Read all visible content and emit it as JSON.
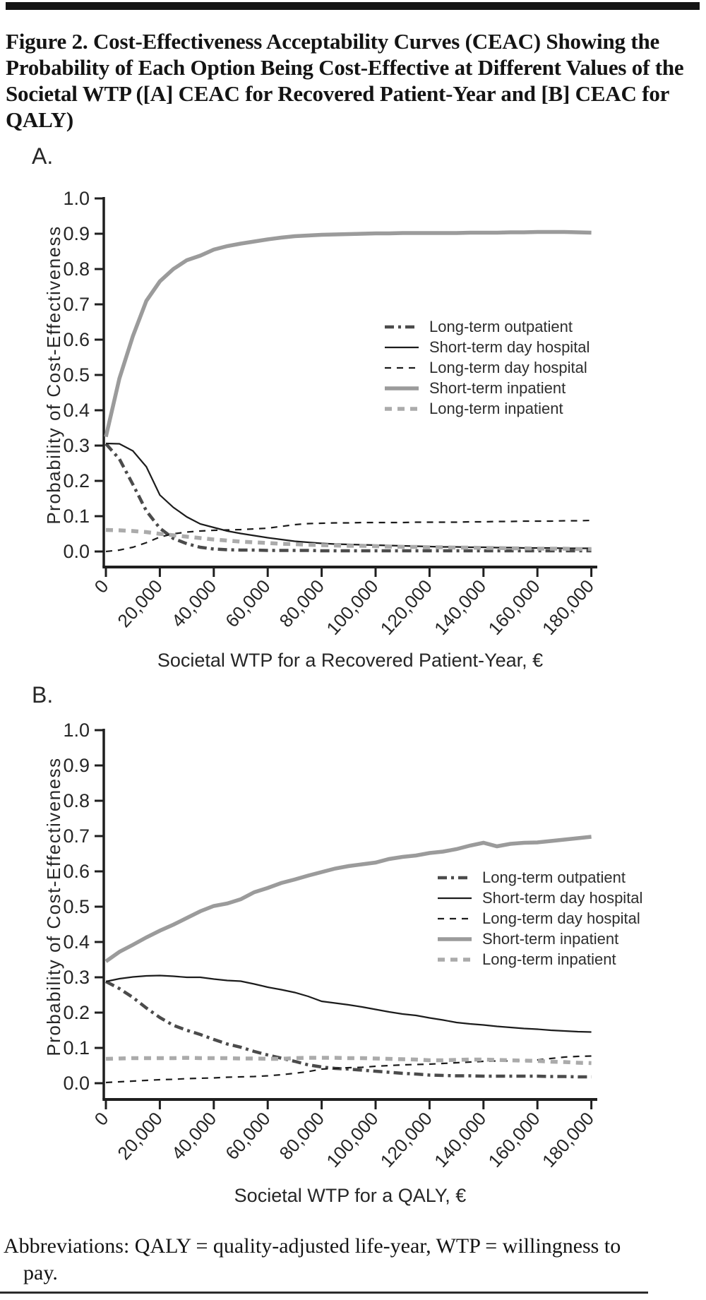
{
  "title": "Figure 2. Cost-Effectiveness Acceptability Curves (CEAC) Showing the Probability of Each Option Being Cost-Effective at Different Values of the Societal WTP ([A] CEAC for Recovered Patient-Year and [B] CEAC for QALY)",
  "footnote": {
    "line1": "Abbreviations: QALY = quality-adjusted life-year, WTP = willingness to",
    "line2": "pay."
  },
  "colors": {
    "black_line": "#1c1c1c",
    "dark_gray_line": "#4b4b4b",
    "mid_gray_line": "#9b9b9b",
    "light_gray_line": "#ababab",
    "axis": "#1f1f1f",
    "text": "#262626"
  },
  "chart_data": [
    {
      "type": "line",
      "panel_label": "A.",
      "xlabel": "Societal WTP for a Recovered Patient-Year, €",
      "ylabel": "Probability of Cost-Effectiveness",
      "xlim": [
        0,
        180000
      ],
      "ylim": [
        0,
        1.0
      ],
      "grid": false,
      "legend_position": "middle-right",
      "x_ticks": [
        0,
        20000,
        40000,
        60000,
        80000,
        100000,
        120000,
        140000,
        160000,
        180000
      ],
      "x_tick_labels": [
        "0",
        "20,000",
        "40,000",
        "60,000",
        "80,000",
        "100,000",
        "120,000",
        "140,000",
        "160,000",
        "180,000"
      ],
      "y_ticks": [
        0,
        0.1,
        0.2,
        0.3,
        0.4,
        0.5,
        0.6,
        0.7,
        0.8,
        0.9,
        1.0
      ],
      "y_tick_labels": [
        "0.0",
        "0.1",
        "0.2",
        "0.3",
        "0.4",
        "0.5",
        "0.6",
        "0.7",
        "0.8",
        "0.9",
        "1.0"
      ],
      "x": [
        0,
        5000,
        10000,
        15000,
        20000,
        25000,
        30000,
        35000,
        40000,
        45000,
        50000,
        55000,
        60000,
        65000,
        70000,
        75000,
        80000,
        85000,
        90000,
        95000,
        100000,
        105000,
        110000,
        115000,
        120000,
        125000,
        130000,
        135000,
        140000,
        145000,
        150000,
        155000,
        160000,
        165000,
        170000,
        175000,
        180000
      ],
      "series": [
        {
          "name": "Long-term outpatient",
          "color": "#4b4b4b",
          "dash": "dashdot",
          "width": 4.5,
          "values": [
            0.305,
            0.262,
            0.19,
            0.115,
            0.066,
            0.037,
            0.022,
            0.012,
            0.007,
            0.005,
            0.004,
            0.004,
            0.003,
            0.003,
            0.003,
            0.003,
            0.002,
            0.002,
            0.002,
            0.002,
            0.002,
            0.002,
            0.002,
            0.002,
            0.002,
            0.002,
            0.002,
            0.002,
            0.002,
            0.002,
            0.002,
            0.002,
            0.002,
            0.002,
            0.002,
            0.002,
            0.002
          ]
        },
        {
          "name": "Short-term day hospital",
          "color": "#1c1c1c",
          "dash": "solid",
          "width": 2.2,
          "values": [
            0.306,
            0.305,
            0.285,
            0.24,
            0.16,
            0.125,
            0.098,
            0.078,
            0.068,
            0.058,
            0.051,
            0.045,
            0.039,
            0.034,
            0.029,
            0.026,
            0.023,
            0.021,
            0.02,
            0.019,
            0.018,
            0.017,
            0.016,
            0.015,
            0.014,
            0.013,
            0.013,
            0.012,
            0.012,
            0.011,
            0.011,
            0.01,
            0.01,
            0.01,
            0.009,
            0.009,
            0.009
          ]
        },
        {
          "name": "Long-term day hospital",
          "color": "#1c1c1c",
          "dash": "dashed",
          "width": 2.2,
          "values": [
            0.0,
            0.004,
            0.012,
            0.025,
            0.041,
            0.05,
            0.055,
            0.058,
            0.06,
            0.061,
            0.062,
            0.064,
            0.066,
            0.071,
            0.076,
            0.079,
            0.08,
            0.081,
            0.081,
            0.082,
            0.082,
            0.082,
            0.082,
            0.083,
            0.083,
            0.083,
            0.083,
            0.084,
            0.084,
            0.085,
            0.085,
            0.086,
            0.086,
            0.086,
            0.087,
            0.087,
            0.088
          ]
        },
        {
          "name": "Short-term inpatient",
          "color": "#9b9b9b",
          "dash": "solid",
          "width": 5.5,
          "values": [
            0.325,
            0.49,
            0.61,
            0.71,
            0.765,
            0.8,
            0.825,
            0.838,
            0.855,
            0.865,
            0.872,
            0.878,
            0.884,
            0.889,
            0.893,
            0.895,
            0.897,
            0.898,
            0.899,
            0.9,
            0.901,
            0.901,
            0.902,
            0.902,
            0.902,
            0.902,
            0.902,
            0.903,
            0.903,
            0.903,
            0.904,
            0.904,
            0.905,
            0.905,
            0.905,
            0.904,
            0.903
          ]
        },
        {
          "name": "Long-term inpatient",
          "color": "#ababab",
          "dash": "dashed-thick",
          "width": 5.5,
          "values": [
            0.061,
            0.06,
            0.058,
            0.055,
            0.05,
            0.046,
            0.042,
            0.038,
            0.034,
            0.031,
            0.028,
            0.026,
            0.024,
            0.022,
            0.021,
            0.019,
            0.018,
            0.017,
            0.016,
            0.016,
            0.015,
            0.014,
            0.013,
            0.013,
            0.012,
            0.012,
            0.011,
            0.011,
            0.01,
            0.01,
            0.009,
            0.009,
            0.008,
            0.008,
            0.008,
            0.007,
            0.007
          ]
        }
      ]
    },
    {
      "type": "line",
      "panel_label": "B.",
      "xlabel": "Societal WTP for a QALY, €",
      "ylabel": "Probability of Cost-Effectiveness",
      "xlim": [
        0,
        180000
      ],
      "ylim": [
        0,
        1.0
      ],
      "grid": false,
      "legend_position": "middle-right",
      "x_ticks": [
        0,
        20000,
        40000,
        60000,
        80000,
        100000,
        120000,
        140000,
        160000,
        180000
      ],
      "x_tick_labels": [
        "0",
        "20,000",
        "40,000",
        "60,000",
        "80,000",
        "100,000",
        "120,000",
        "140,000",
        "160,000",
        "180,000"
      ],
      "y_ticks": [
        0,
        0.1,
        0.2,
        0.3,
        0.4,
        0.5,
        0.6,
        0.7,
        0.8,
        0.9,
        1.0
      ],
      "y_tick_labels": [
        "0.0",
        "0.1",
        "0.2",
        "0.3",
        "0.4",
        "0.5",
        "0.6",
        "0.7",
        "0.8",
        "0.9",
        "1.0"
      ],
      "x": [
        0,
        5000,
        10000,
        15000,
        20000,
        25000,
        30000,
        35000,
        40000,
        45000,
        50000,
        55000,
        60000,
        65000,
        70000,
        75000,
        80000,
        85000,
        90000,
        95000,
        100000,
        105000,
        110000,
        115000,
        120000,
        125000,
        130000,
        135000,
        140000,
        145000,
        150000,
        155000,
        160000,
        165000,
        170000,
        175000,
        180000
      ],
      "series": [
        {
          "name": "Long-term outpatient",
          "color": "#4b4b4b",
          "dash": "dashdot",
          "width": 4.5,
          "values": [
            0.288,
            0.268,
            0.243,
            0.213,
            0.186,
            0.164,
            0.15,
            0.138,
            0.124,
            0.111,
            0.102,
            0.09,
            0.08,
            0.071,
            0.062,
            0.052,
            0.046,
            0.042,
            0.04,
            0.037,
            0.034,
            0.031,
            0.028,
            0.026,
            0.023,
            0.022,
            0.021,
            0.021,
            0.02,
            0.02,
            0.02,
            0.02,
            0.02,
            0.019,
            0.019,
            0.018,
            0.018
          ]
        },
        {
          "name": "Short-term day hospital",
          "color": "#1c1c1c",
          "dash": "solid",
          "width": 2.2,
          "values": [
            0.288,
            0.296,
            0.301,
            0.304,
            0.305,
            0.303,
            0.3,
            0.3,
            0.295,
            0.291,
            0.289,
            0.281,
            0.272,
            0.265,
            0.257,
            0.246,
            0.232,
            0.227,
            0.222,
            0.216,
            0.209,
            0.202,
            0.196,
            0.192,
            0.185,
            0.179,
            0.172,
            0.168,
            0.165,
            0.161,
            0.158,
            0.155,
            0.153,
            0.15,
            0.148,
            0.146,
            0.145
          ]
        },
        {
          "name": "Long-term day hospital",
          "color": "#1c1c1c",
          "dash": "dashed",
          "width": 2.2,
          "values": [
            0.002,
            0.004,
            0.006,
            0.008,
            0.01,
            0.011,
            0.013,
            0.014,
            0.015,
            0.017,
            0.018,
            0.019,
            0.021,
            0.024,
            0.028,
            0.033,
            0.04,
            0.042,
            0.044,
            0.045,
            0.048,
            0.05,
            0.052,
            0.053,
            0.054,
            0.056,
            0.058,
            0.06,
            0.062,
            0.063,
            0.063,
            0.064,
            0.066,
            0.07,
            0.074,
            0.076,
            0.077
          ]
        },
        {
          "name": "Short-term inpatient",
          "color": "#9b9b9b",
          "dash": "solid",
          "width": 5.5,
          "values": [
            0.345,
            0.372,
            0.392,
            0.413,
            0.432,
            0.449,
            0.468,
            0.487,
            0.502,
            0.509,
            0.521,
            0.541,
            0.553,
            0.567,
            0.577,
            0.588,
            0.598,
            0.608,
            0.615,
            0.62,
            0.625,
            0.635,
            0.641,
            0.645,
            0.652,
            0.656,
            0.663,
            0.673,
            0.681,
            0.671,
            0.678,
            0.681,
            0.682,
            0.686,
            0.69,
            0.694,
            0.698
          ]
        },
        {
          "name": "Long-term inpatient",
          "color": "#ababab",
          "dash": "dashed-thick",
          "width": 5.5,
          "values": [
            0.069,
            0.07,
            0.071,
            0.071,
            0.071,
            0.071,
            0.072,
            0.071,
            0.071,
            0.071,
            0.07,
            0.07,
            0.069,
            0.069,
            0.071,
            0.072,
            0.072,
            0.072,
            0.071,
            0.071,
            0.07,
            0.069,
            0.068,
            0.067,
            0.065,
            0.065,
            0.066,
            0.067,
            0.067,
            0.066,
            0.065,
            0.064,
            0.063,
            0.061,
            0.06,
            0.058,
            0.057
          ]
        }
      ]
    }
  ]
}
